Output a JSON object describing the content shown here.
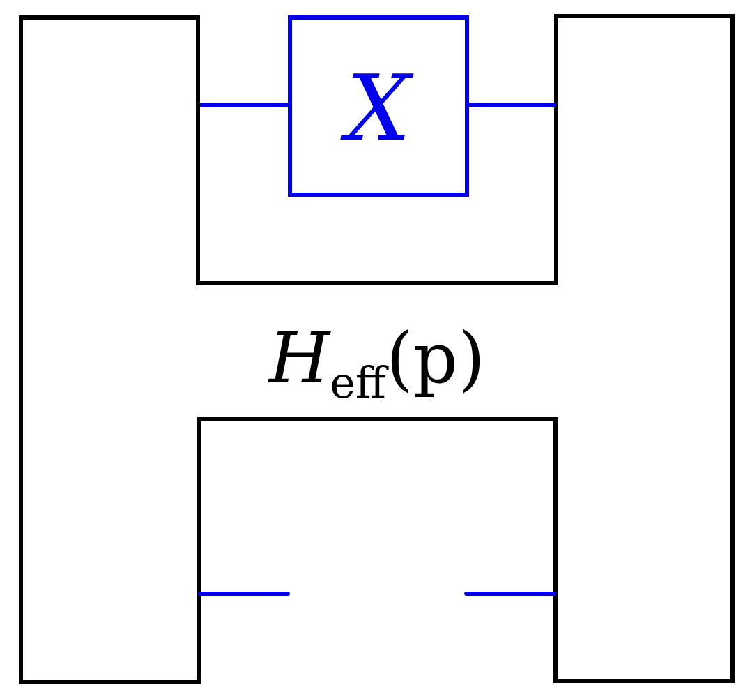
{
  "colors": {
    "outline": "#000000",
    "accent": "#0000ee",
    "background": "#ffffff"
  },
  "diagram": {
    "operator_label": "X",
    "hamiltonian": {
      "symbol": "H",
      "subscript": "eff",
      "argument": "(p)"
    }
  }
}
